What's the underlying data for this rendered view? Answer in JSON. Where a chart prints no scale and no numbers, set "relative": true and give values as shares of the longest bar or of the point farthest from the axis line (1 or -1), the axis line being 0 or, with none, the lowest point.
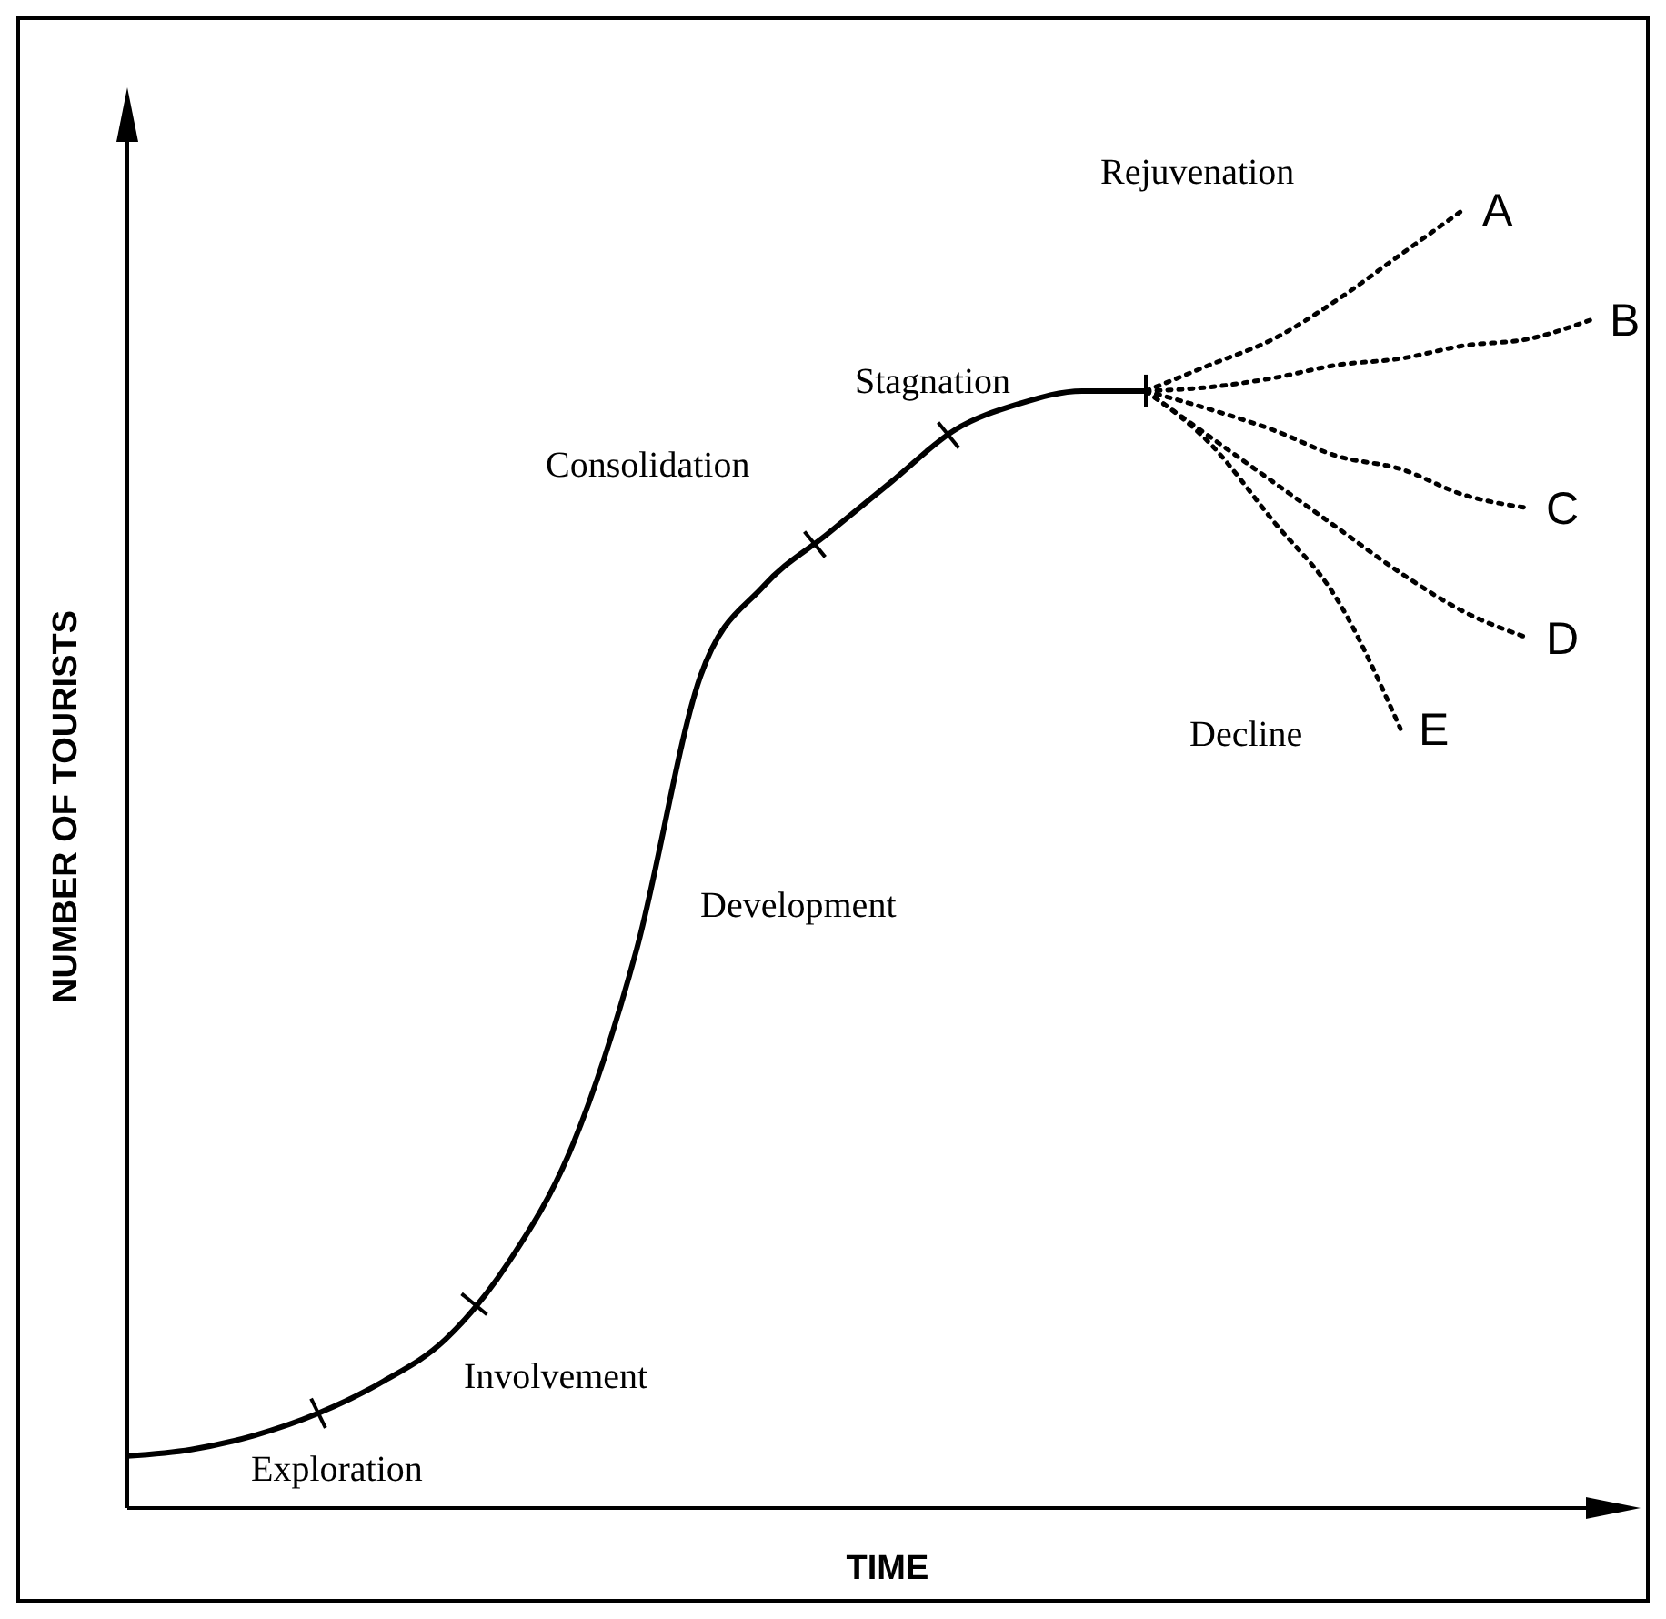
{
  "chart_data": {
    "type": "line",
    "relative": true,
    "xlabel": "TIME",
    "ylabel": "NUMBER OF TOURISTS",
    "legend": false,
    "categories": [
      null,
      null,
      null,
      null,
      null,
      null,
      null,
      null,
      null,
      null,
      null,
      null,
      null,
      null,
      null,
      null,
      null,
      null,
      null,
      null,
      null,
      null,
      null,
      null
    ],
    "annotations": [
      "Exploration",
      "Involvement",
      "Development",
      "Consolidation",
      "Stagnation",
      "Rejuvenation",
      "Decline"
    ],
    "series": [
      {
        "color": "#000000",
        "line_style": "solid",
        "values": [
          0.04,
          0.045,
          0.056,
          0.073,
          0.097,
          0.13,
          0.19,
          0.28,
          0.43,
          0.64,
          0.71,
          0.75,
          0.79,
          0.83,
          0.85,
          0.86,
          0.86,
          null,
          null,
          null,
          null,
          null,
          null,
          null
        ]
      },
      {
        "name": "A",
        "color": "#000000",
        "line_style": "dotted",
        "values": [
          null,
          null,
          null,
          null,
          null,
          null,
          null,
          null,
          null,
          null,
          null,
          null,
          null,
          null,
          null,
          null,
          0.86,
          0.88,
          0.9,
          0.93,
          0.965,
          1.0,
          null,
          null
        ]
      },
      {
        "name": "B",
        "color": "#000000",
        "line_style": "dotted",
        "values": [
          null,
          null,
          null,
          null,
          null,
          null,
          null,
          null,
          null,
          null,
          null,
          null,
          null,
          null,
          null,
          null,
          0.86,
          0.863,
          0.87,
          0.88,
          0.885,
          0.895,
          0.9,
          0.915
        ]
      },
      {
        "name": "C",
        "color": "#000000",
        "line_style": "dotted",
        "values": [
          null,
          null,
          null,
          null,
          null,
          null,
          null,
          null,
          null,
          null,
          null,
          null,
          null,
          null,
          null,
          null,
          0.86,
          0.846,
          0.83,
          0.81,
          0.8,
          0.78,
          0.77,
          null
        ]
      },
      {
        "name": "D",
        "color": "#000000",
        "line_style": "dotted",
        "values": [
          null,
          null,
          null,
          null,
          null,
          null,
          null,
          null,
          null,
          null,
          null,
          null,
          null,
          null,
          null,
          null,
          0.86,
          0.825,
          0.79,
          0.755,
          0.72,
          0.69,
          0.67,
          null
        ]
      },
      {
        "name": "E",
        "color": "#000000",
        "line_style": "dotted",
        "values": [
          null,
          null,
          null,
          null,
          null,
          null,
          null,
          null,
          null,
          null,
          null,
          null,
          null,
          null,
          null,
          null,
          0.86,
          0.82,
          0.76,
          0.7,
          0.6,
          null,
          null,
          null
        ]
      }
    ]
  }
}
